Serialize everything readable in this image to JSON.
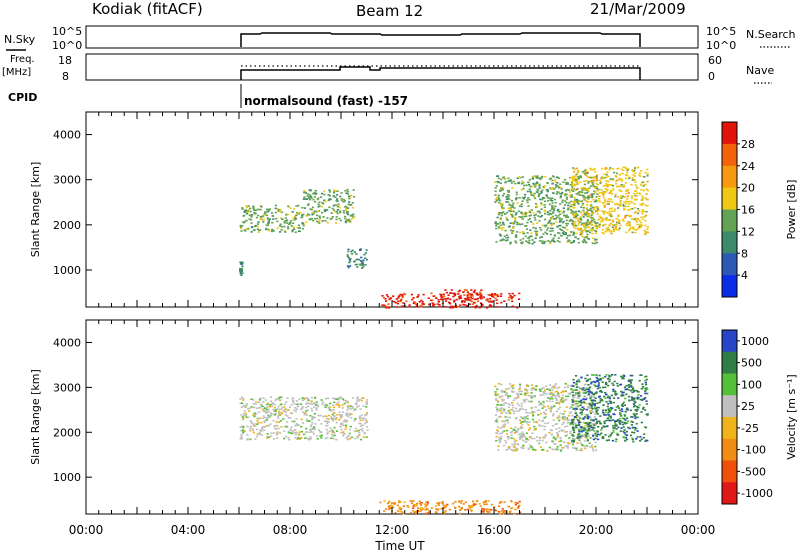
{
  "header": {
    "station": "Kodiak (fitACF)",
    "beam": "Beam 12",
    "date": "21/Mar/2009"
  },
  "strips": {
    "nsky_label": "N.Sky",
    "nsky_ticks": [
      "10^5",
      "10^0"
    ],
    "nsearch_label": "N.Search",
    "freq_label": "Freq.",
    "freq_unit": "[MHz]",
    "freq_ticks": [
      "18",
      "8"
    ],
    "nave_ticks": [
      "60",
      "0"
    ],
    "nave_label": "Nave",
    "cpid_label": "CPID",
    "cpid_value": "normalsound (fast) -157"
  },
  "chart_data": [
    {
      "type": "heatmap",
      "title": "Power",
      "xlabel": "",
      "ylabel": "Slant Range [km]",
      "xlim": [
        0,
        24
      ],
      "ylim": [
        180,
        4500
      ],
      "y_ticks": [
        "1000",
        "2000",
        "3000",
        "4000"
      ],
      "colorbar": {
        "label": "Power [dB]",
        "ticks": [
          "4",
          "8",
          "12",
          "16",
          "20",
          "24",
          "28"
        ],
        "colors": [
          "#0a2ce6",
          "#2d59b4",
          "#3c8a6c",
          "#62a454",
          "#f0c814",
          "#f79a10",
          "#f4620c",
          "#e0140a"
        ]
      },
      "regions": [
        {
          "t0": 6.0,
          "t1": 8.5,
          "r0": 1850,
          "r1": 2450,
          "level": 10
        },
        {
          "t0": 8.5,
          "t1": 10.5,
          "r0": 2050,
          "r1": 2800,
          "level": 11
        },
        {
          "t0": 6.0,
          "t1": 6.1,
          "r0": 900,
          "r1": 1200,
          "level": 7
        },
        {
          "t0": 10.2,
          "t1": 11.0,
          "r0": 1050,
          "r1": 1500,
          "level": 9
        },
        {
          "t0": 11.5,
          "t1": 17.0,
          "r0": 180,
          "r1": 500,
          "level": 27
        },
        {
          "t0": 14.0,
          "t1": 15.5,
          "r0": 360,
          "r1": 580,
          "level": 28
        },
        {
          "t0": 16.0,
          "t1": 20.0,
          "r0": 1600,
          "r1": 3100,
          "level": 13
        },
        {
          "t0": 19.0,
          "t1": 22.0,
          "r0": 1800,
          "r1": 3300,
          "level": 17
        }
      ]
    },
    {
      "type": "heatmap",
      "title": "Velocity",
      "xlabel": "Time UT",
      "ylabel": "Slant Range [km]",
      "xlim": [
        0,
        24
      ],
      "ylim": [
        180,
        4500
      ],
      "x_ticks": [
        "00:00",
        "04:00",
        "08:00",
        "12:00",
        "16:00",
        "20:00",
        "00:00"
      ],
      "y_ticks": [
        "1000",
        "2000",
        "3000",
        "4000"
      ],
      "colorbar": {
        "label": "Velocity [m s⁻¹]",
        "ticks": [
          "1000",
          "500",
          "100",
          "25",
          "-25",
          "-100",
          "-500",
          "-1000"
        ],
        "colors": [
          "#2845c8",
          "#2f7e46",
          "#54c038",
          "#c0c0c0",
          "#f0b41a",
          "#f08c14",
          "#f0500a",
          "#e01818"
        ]
      },
      "regions": [
        {
          "t0": 6.0,
          "t1": 11.0,
          "r0": 1850,
          "r1": 2800,
          "velocity": 0
        },
        {
          "t0": 11.5,
          "t1": 17.0,
          "r0": 200,
          "r1": 500,
          "velocity": -150
        },
        {
          "t0": 16.0,
          "t1": 20.0,
          "r0": 1600,
          "r1": 3100,
          "velocity": 0
        },
        {
          "t0": 19.0,
          "t1": 22.0,
          "r0": 1800,
          "r1": 3300,
          "velocity": 600
        }
      ]
    }
  ]
}
